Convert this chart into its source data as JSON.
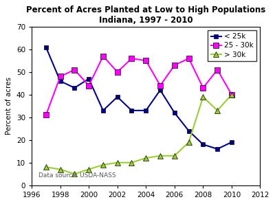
{
  "title_line1": "Percent of Acres Planted at Low to High Populations",
  "title_line2": "Indiana, 1997 - 2010",
  "ylabel": "Percent of acres",
  "xlim": [
    1996,
    2012
  ],
  "ylim": [
    0,
    70
  ],
  "yticks": [
    0,
    10,
    20,
    30,
    40,
    50,
    60,
    70
  ],
  "xticks": [
    1996,
    1998,
    2000,
    2002,
    2004,
    2006,
    2008,
    2010,
    2012
  ],
  "annotation": "Data source: USDA-NASS",
  "series": [
    {
      "label": "< 25k",
      "color": "#00008B",
      "marker": "s",
      "markersize": 5,
      "linewidth": 1.5,
      "years": [
        1997,
        1998,
        1999,
        2000,
        2001,
        2002,
        2003,
        2004,
        2005,
        2006,
        2007,
        2008,
        2009,
        2010
      ],
      "values": [
        61,
        46,
        43,
        47,
        33,
        39,
        33,
        33,
        42,
        32,
        24,
        18,
        16,
        19
      ]
    },
    {
      "label": "25 - 30k",
      "color": "#FF00FF",
      "marker": "s",
      "markersize": 6,
      "linewidth": 1.5,
      "years": [
        1997,
        1998,
        1999,
        2000,
        2001,
        2002,
        2003,
        2004,
        2005,
        2006,
        2007,
        2008,
        2009,
        2010
      ],
      "values": [
        31,
        48,
        51,
        44,
        57,
        50,
        56,
        55,
        44,
        53,
        56,
        43,
        51,
        40
      ]
    },
    {
      "label": "> 30k",
      "color": "#9ACD32",
      "marker": "^",
      "markersize": 6,
      "linewidth": 1.5,
      "years": [
        1997,
        1998,
        1999,
        2000,
        2001,
        2002,
        2003,
        2004,
        2005,
        2006,
        2007,
        2008,
        2009,
        2010
      ],
      "values": [
        8,
        7,
        5,
        7,
        9,
        10,
        10,
        12,
        13,
        13,
        19,
        39,
        33,
        40
      ]
    }
  ],
  "background_color": "#ffffff",
  "plot_bg_color": "#ffffff",
  "legend_fontsize": 7.5,
  "title_fontsize": 8.5,
  "axis_fontsize": 7.5,
  "ylabel_fontsize": 7.5
}
